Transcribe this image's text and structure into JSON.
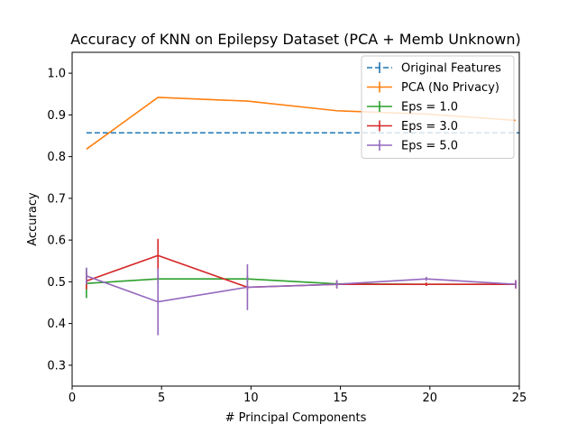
{
  "chart_data": {
    "type": "line",
    "title": "Accuracy of KNN on Epilepsy Dataset (PCA + Memb Unknown)",
    "xlabel": "# Principal Components",
    "ylabel": "Accuracy",
    "xlim": [
      0,
      25
    ],
    "ylim": [
      0.25,
      1.05
    ],
    "xticks": [
      0,
      5,
      10,
      15,
      20,
      25
    ],
    "yticks": [
      0.3,
      0.4,
      0.5,
      0.6,
      0.7,
      0.8,
      0.9,
      1.0
    ],
    "grid": false,
    "legend_position": "top-right",
    "series": [
      {
        "name": "Original Features",
        "color": "#1f77b4",
        "dashed": true,
        "x": [
          0.8,
          25
        ],
        "y": [
          0.857,
          0.857
        ],
        "err": [
          0,
          0
        ]
      },
      {
        "name": "PCA (No Privacy)",
        "color": "#ff7f0e",
        "dashed": false,
        "x": [
          0.8,
          4.8,
          9.8,
          14.8,
          19.8,
          24.8
        ],
        "y": [
          0.818,
          0.942,
          0.933,
          0.91,
          0.902,
          0.887
        ],
        "err": [
          0,
          0,
          0,
          0,
          0,
          0
        ]
      },
      {
        "name": "Eps = 1.0",
        "color": "#2ca02c",
        "dashed": false,
        "x": [
          0.8,
          4.8,
          9.8,
          14.8,
          19.8,
          24.8
        ],
        "y": [
          0.496,
          0.507,
          0.507,
          0.495,
          0.494,
          0.494
        ],
        "err": [
          0.035,
          0.01,
          0.008,
          0.006,
          0.004,
          0.005
        ]
      },
      {
        "name": "Eps = 3.0",
        "color": "#d62728",
        "dashed": false,
        "x": [
          0.8,
          4.8,
          9.8,
          14.8,
          19.8,
          24.8
        ],
        "y": [
          0.502,
          0.563,
          0.487,
          0.494,
          0.494,
          0.494
        ],
        "err": [
          0.02,
          0.04,
          0.006,
          0.01,
          0.004,
          0.01
        ]
      },
      {
        "name": "Eps = 5.0",
        "color": "#9467bd",
        "dashed": false,
        "x": [
          0.8,
          4.8,
          9.8,
          14.8,
          19.8,
          24.8
        ],
        "y": [
          0.514,
          0.452,
          0.487,
          0.494,
          0.507,
          0.494
        ],
        "err": [
          0.02,
          0.08,
          0.055,
          0.01,
          0.005,
          0.01
        ]
      }
    ]
  }
}
